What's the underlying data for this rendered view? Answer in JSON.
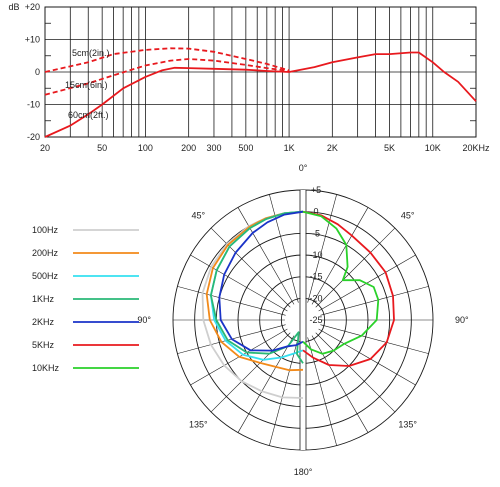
{
  "colors": {
    "grid": "#1a1a1a",
    "response": "#e8191e",
    "background": "#ffffff"
  },
  "chart_data": [
    {
      "type": "line",
      "title": "",
      "xscale": "log",
      "xlim": [
        20,
        20000
      ],
      "ylim": [
        -20,
        20
      ],
      "ylabel_unit": "dB",
      "y_ticks": [
        "+20",
        "+10",
        "0",
        "-10",
        "-20"
      ],
      "y_tick_values": [
        20,
        10,
        0,
        -10,
        -20
      ],
      "x_ticks": [
        "20",
        "50",
        "100",
        "200",
        "300",
        "500",
        "1K",
        "2K",
        "5K",
        "10K",
        "20KHz"
      ],
      "x_tick_values": [
        20,
        50,
        100,
        200,
        300,
        500,
        1000,
        2000,
        5000,
        10000,
        20000
      ],
      "x_gridlines": [
        20,
        30,
        40,
        50,
        60,
        70,
        80,
        90,
        100,
        200,
        300,
        400,
        500,
        600,
        700,
        800,
        900,
        1000,
        2000,
        3000,
        4000,
        5000,
        6000,
        7000,
        8000,
        9000,
        10000,
        20000
      ],
      "series": [
        {
          "style": "solid",
          "x": [
            20,
            30,
            40,
            50,
            70,
            100,
            130,
            160,
            200,
            300,
            500,
            700,
            1000,
            1500,
            2000,
            3000,
            4000,
            5000,
            7000,
            8000,
            10000,
            12000,
            15000,
            20000
          ],
          "y": [
            -20,
            -16.5,
            -13,
            -10,
            -5,
            -1.5,
            0.5,
            1.3,
            1.2,
            1,
            0.7,
            0.3,
            0,
            1.5,
            3,
            4.5,
            5.5,
            5.5,
            6,
            6,
            3,
            0,
            -3,
            -9
          ]
        },
        {
          "style": "dashed",
          "x": [
            20,
            40,
            60,
            100,
            150,
            200,
            300,
            500,
            700,
            1000
          ],
          "y": [
            -7,
            -3.5,
            -1,
            2,
            3.5,
            4,
            3.5,
            2.2,
            1.2,
            0.3
          ]
        },
        {
          "style": "dashed",
          "x": [
            20,
            40,
            60,
            100,
            150,
            200,
            300,
            500,
            700,
            1000
          ],
          "y": [
            0,
            3,
            5.5,
            6.8,
            7.3,
            7.2,
            6.2,
            4,
            2.5,
            0.5
          ]
        }
      ],
      "annotations": [
        "5cm(2in.)",
        "15cm(6in.)",
        "60cm(2ft.)"
      ]
    },
    {
      "type": "polar",
      "title": "",
      "r_range": [
        -25,
        5
      ],
      "r_ticks": [
        "+5",
        "0",
        "-5",
        "-10",
        "-15",
        "-20",
        "-25"
      ],
      "r_tick_values": [
        5,
        0,
        -5,
        -10,
        -15,
        -20,
        -25
      ],
      "angle_labels": [
        {
          "text": "0°",
          "deg": 0
        },
        {
          "text": "45°",
          "deg": 45
        },
        {
          "text": "90°",
          "deg": 90
        },
        {
          "text": "135°",
          "deg": 135
        },
        {
          "text": "180°",
          "deg": 180
        },
        {
          "text": "135°",
          "deg": 225
        },
        {
          "text": "90°",
          "deg": 270
        },
        {
          "text": "45°",
          "deg": 315
        }
      ],
      "legend_position": "left",
      "series": [
        {
          "name": "100Hz",
          "color": "#cfcfcf",
          "side": "left",
          "angles": [
            0,
            10,
            20,
            30,
            45,
            60,
            75,
            90,
            105,
            120,
            135,
            150,
            165,
            180
          ],
          "values": [
            0,
            0,
            0,
            0,
            -0.2,
            -0.5,
            -1,
            -2,
            -3,
            -4,
            -5,
            -6,
            -6.5,
            -7
          ]
        },
        {
          "name": "200Hz",
          "color": "#f28a1a",
          "side": "left",
          "angles": [
            0,
            10,
            20,
            30,
            45,
            60,
            75,
            90,
            105,
            120,
            135,
            150,
            165,
            180
          ],
          "values": [
            0,
            0,
            0,
            -0.2,
            -0.5,
            -1,
            -2,
            -3.5,
            -5.5,
            -8,
            -11,
            -12.5,
            -13,
            -13.5
          ]
        },
        {
          "name": "500Hz",
          "color": "#35e0f0",
          "side": "left",
          "angles": [
            0,
            10,
            20,
            30,
            45,
            60,
            75,
            90,
            105,
            120,
            135,
            150,
            165,
            180
          ],
          "values": [
            0,
            0,
            -0.2,
            -0.5,
            -1,
            -2,
            -3,
            -4.5,
            -6.5,
            -9,
            -12,
            -15,
            -17,
            -18
          ]
        },
        {
          "name": "1KHz",
          "color": "#2ab877",
          "side": "left",
          "angles": [
            0,
            10,
            20,
            30,
            45,
            60,
            75,
            90,
            105,
            120,
            135,
            150,
            160,
            170,
            180
          ],
          "values": [
            0,
            0,
            -0.2,
            -0.5,
            -1,
            -2,
            -3,
            -5,
            -7,
            -10,
            -14,
            -18,
            -22,
            -17,
            -15
          ]
        },
        {
          "name": "2KHz",
          "color": "#1a33c8",
          "side": "left",
          "angles": [
            0,
            10,
            20,
            30,
            45,
            60,
            75,
            90,
            105,
            120,
            135,
            150,
            165,
            180
          ],
          "values": [
            0,
            -0.3,
            -1,
            -1.8,
            -3,
            -4,
            -5,
            -6,
            -8,
            -11,
            -15,
            -18,
            -19,
            -20
          ]
        },
        {
          "name": "5KHz",
          "color": "#e8191e",
          "side": "right",
          "angles": [
            0,
            10,
            20,
            30,
            45,
            60,
            75,
            90,
            105,
            120,
            135,
            150,
            165,
            180
          ],
          "values": [
            0,
            -0.5,
            -1.5,
            -2.5,
            -3,
            -3,
            -3.5,
            -4,
            -5,
            -7,
            -10,
            -13,
            -16,
            -18
          ]
        },
        {
          "name": "10KHz",
          "color": "#2ad12a",
          "side": "right",
          "angles": [
            0,
            10,
            20,
            30,
            40,
            45,
            55,
            65,
            75,
            90,
            105,
            120,
            135,
            150,
            165,
            180
          ],
          "values": [
            0,
            -0.7,
            -2.5,
            -5,
            -9,
            -12,
            -9,
            -7,
            -7,
            -8,
            -11,
            -14,
            -15,
            -16,
            -18,
            -20
          ]
        }
      ]
    }
  ]
}
